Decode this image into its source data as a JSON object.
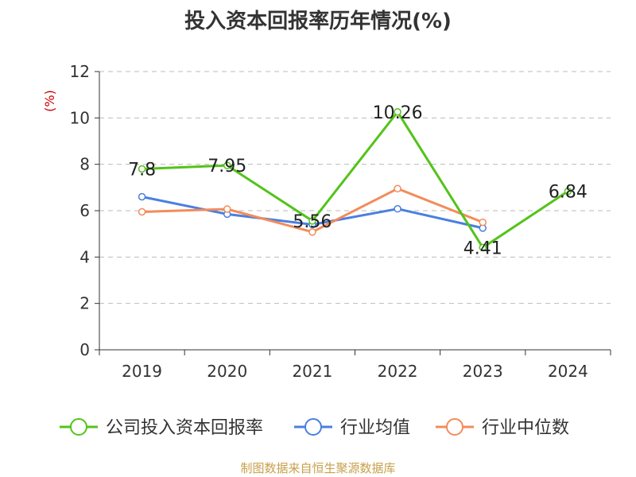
{
  "title": "投入资本回报率历年情况(%)",
  "footer": "制图数据来自恒生聚源数据库",
  "chart_data": {
    "type": "line",
    "title": "投入资本回报率历年情况(%)",
    "ylabel": "(%)",
    "xlabel": "",
    "categories": [
      "2019",
      "2020",
      "2021",
      "2022",
      "2023",
      "2024"
    ],
    "ylim": [
      0,
      12
    ],
    "yticks": [
      0,
      2,
      4,
      6,
      8,
      10,
      12
    ],
    "grid": true,
    "legend_position": "bottom",
    "series": [
      {
        "name": "公司投入资本回报率",
        "color": "#52c41a",
        "values": [
          7.8,
          7.95,
          5.56,
          10.26,
          4.41,
          6.84
        ],
        "labels": [
          "7.8",
          "7.95",
          "5.56",
          "10.26",
          "4.41",
          "6.84"
        ]
      },
      {
        "name": "行业均值",
        "color": "#4a7fe0",
        "values": [
          6.6,
          5.85,
          5.4,
          6.08,
          5.25,
          null
        ]
      },
      {
        "name": "行业中位数",
        "color": "#f28c5a",
        "values": [
          5.95,
          6.07,
          5.08,
          6.95,
          5.5,
          null
        ]
      }
    ]
  }
}
